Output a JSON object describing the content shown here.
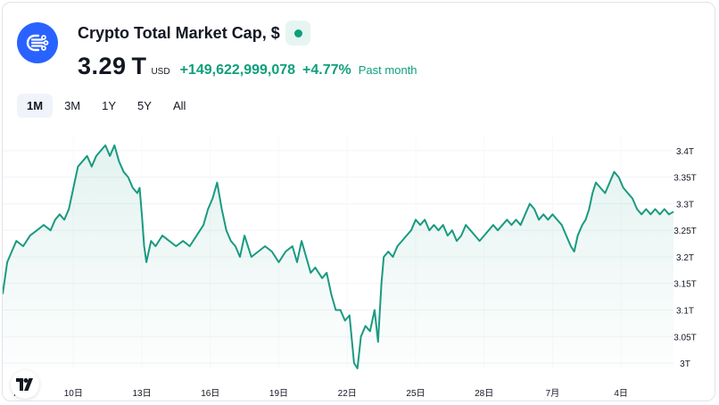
{
  "header": {
    "logo_icon": "crypto-total-market-cap-logo-icon",
    "title": "Crypto Total Market Cap, $",
    "status_icon": "market-status-dot-icon",
    "price": "3.29 T",
    "currency": "USD",
    "change": "+149,622,999,078",
    "change_pct": "+4.77%",
    "period": "Past month"
  },
  "tabs": [
    {
      "label": "1M",
      "active": true
    },
    {
      "label": "3M",
      "active": false
    },
    {
      "label": "1Y",
      "active": false
    },
    {
      "label": "5Y",
      "active": false
    },
    {
      "label": "All",
      "active": false
    }
  ],
  "colors": {
    "accent": "#0e9f7c",
    "logo_bg": "#2962ff",
    "line": "#1a9a80"
  },
  "chart_data": {
    "type": "area",
    "x_unit": "day",
    "x_start": "7日",
    "ylim": [
      2.99,
      3.43
    ],
    "yticks": [
      3.0,
      3.05,
      3.1,
      3.15,
      3.2,
      3.25,
      3.3,
      3.35,
      3.4
    ],
    "ytick_labels": [
      "3T",
      "3.05T",
      "3.1T",
      "3.15T",
      "3.2T",
      "3.25T",
      "3.3T",
      "3.35T",
      "3.4T"
    ],
    "xticks": [
      {
        "day": 10,
        "label": "10日"
      },
      {
        "day": 13,
        "label": "13日"
      },
      {
        "day": 16,
        "label": "16日"
      },
      {
        "day": 19,
        "label": "19日"
      },
      {
        "day": 22,
        "label": "22日"
      },
      {
        "day": 25,
        "label": "25日"
      },
      {
        "day": 28,
        "label": "28日"
      },
      {
        "day": 31,
        "label": "7月"
      },
      {
        "day": 34,
        "label": "4日"
      }
    ],
    "xlim": [
      6.9,
      36.3
    ],
    "grid": true,
    "legend": "none",
    "series": [
      {
        "values": [
          [
            6.9,
            3.13
          ],
          [
            7.1,
            3.19
          ],
          [
            7.3,
            3.21
          ],
          [
            7.5,
            3.23
          ],
          [
            7.8,
            3.22
          ],
          [
            8.1,
            3.24
          ],
          [
            8.4,
            3.25
          ],
          [
            8.7,
            3.26
          ],
          [
            9.0,
            3.25
          ],
          [
            9.2,
            3.27
          ],
          [
            9.4,
            3.28
          ],
          [
            9.6,
            3.27
          ],
          [
            9.8,
            3.29
          ],
          [
            10.0,
            3.33
          ],
          [
            10.2,
            3.37
          ],
          [
            10.4,
            3.38
          ],
          [
            10.6,
            3.39
          ],
          [
            10.8,
            3.37
          ],
          [
            11.0,
            3.39
          ],
          [
            11.2,
            3.4
          ],
          [
            11.4,
            3.41
          ],
          [
            11.6,
            3.39
          ],
          [
            11.8,
            3.41
          ],
          [
            12.0,
            3.38
          ],
          [
            12.2,
            3.36
          ],
          [
            12.4,
            3.35
          ],
          [
            12.6,
            3.33
          ],
          [
            12.8,
            3.32
          ],
          [
            12.9,
            3.33
          ],
          [
            13.0,
            3.28
          ],
          [
            13.1,
            3.22
          ],
          [
            13.2,
            3.19
          ],
          [
            13.4,
            3.23
          ],
          [
            13.6,
            3.22
          ],
          [
            13.9,
            3.24
          ],
          [
            14.2,
            3.23
          ],
          [
            14.5,
            3.22
          ],
          [
            14.8,
            3.23
          ],
          [
            15.1,
            3.22
          ],
          [
            15.4,
            3.24
          ],
          [
            15.7,
            3.26
          ],
          [
            15.9,
            3.29
          ],
          [
            16.1,
            3.31
          ],
          [
            16.3,
            3.34
          ],
          [
            16.5,
            3.29
          ],
          [
            16.7,
            3.25
          ],
          [
            16.9,
            3.23
          ],
          [
            17.1,
            3.22
          ],
          [
            17.3,
            3.2
          ],
          [
            17.5,
            3.24
          ],
          [
            17.8,
            3.2
          ],
          [
            18.1,
            3.21
          ],
          [
            18.4,
            3.22
          ],
          [
            18.7,
            3.21
          ],
          [
            19.0,
            3.19
          ],
          [
            19.3,
            3.21
          ],
          [
            19.6,
            3.22
          ],
          [
            19.8,
            3.19
          ],
          [
            20.0,
            3.23
          ],
          [
            20.2,
            3.2
          ],
          [
            20.4,
            3.17
          ],
          [
            20.6,
            3.18
          ],
          [
            20.9,
            3.16
          ],
          [
            21.1,
            3.17
          ],
          [
            21.3,
            3.13
          ],
          [
            21.5,
            3.1
          ],
          [
            21.7,
            3.1
          ],
          [
            21.9,
            3.08
          ],
          [
            22.1,
            3.09
          ],
          [
            22.3,
            3.0
          ],
          [
            22.45,
            2.99
          ],
          [
            22.6,
            3.05
          ],
          [
            22.8,
            3.07
          ],
          [
            23.0,
            3.06
          ],
          [
            23.2,
            3.1
          ],
          [
            23.35,
            3.04
          ],
          [
            23.5,
            3.15
          ],
          [
            23.6,
            3.2
          ],
          [
            23.8,
            3.21
          ],
          [
            24.0,
            3.2
          ],
          [
            24.2,
            3.22
          ],
          [
            24.4,
            3.23
          ],
          [
            24.6,
            3.24
          ],
          [
            24.8,
            3.25
          ],
          [
            25.0,
            3.27
          ],
          [
            25.2,
            3.26
          ],
          [
            25.4,
            3.27
          ],
          [
            25.6,
            3.25
          ],
          [
            25.8,
            3.26
          ],
          [
            26.0,
            3.25
          ],
          [
            26.2,
            3.26
          ],
          [
            26.4,
            3.24
          ],
          [
            26.6,
            3.25
          ],
          [
            26.8,
            3.23
          ],
          [
            27.0,
            3.24
          ],
          [
            27.2,
            3.26
          ],
          [
            27.4,
            3.25
          ],
          [
            27.6,
            3.24
          ],
          [
            27.8,
            3.23
          ],
          [
            28.0,
            3.24
          ],
          [
            28.2,
            3.25
          ],
          [
            28.4,
            3.26
          ],
          [
            28.6,
            3.25
          ],
          [
            28.8,
            3.26
          ],
          [
            29.0,
            3.27
          ],
          [
            29.2,
            3.26
          ],
          [
            29.4,
            3.27
          ],
          [
            29.6,
            3.26
          ],
          [
            29.8,
            3.28
          ],
          [
            30.0,
            3.3
          ],
          [
            30.2,
            3.29
          ],
          [
            30.4,
            3.27
          ],
          [
            30.6,
            3.28
          ],
          [
            30.8,
            3.27
          ],
          [
            31.0,
            3.28
          ],
          [
            31.2,
            3.27
          ],
          [
            31.4,
            3.26
          ],
          [
            31.6,
            3.24
          ],
          [
            31.8,
            3.22
          ],
          [
            31.95,
            3.21
          ],
          [
            32.1,
            3.24
          ],
          [
            32.3,
            3.26
          ],
          [
            32.45,
            3.27
          ],
          [
            32.6,
            3.29
          ],
          [
            32.75,
            3.32
          ],
          [
            32.9,
            3.34
          ],
          [
            33.1,
            3.33
          ],
          [
            33.3,
            3.32
          ],
          [
            33.5,
            3.34
          ],
          [
            33.7,
            3.36
          ],
          [
            33.9,
            3.35
          ],
          [
            34.1,
            3.33
          ],
          [
            34.3,
            3.32
          ],
          [
            34.5,
            3.31
          ],
          [
            34.7,
            3.29
          ],
          [
            34.9,
            3.28
          ],
          [
            35.1,
            3.29
          ],
          [
            35.3,
            3.28
          ],
          [
            35.5,
            3.29
          ],
          [
            35.7,
            3.28
          ],
          [
            35.9,
            3.29
          ],
          [
            36.1,
            3.28
          ],
          [
            36.3,
            3.285
          ]
        ]
      }
    ]
  }
}
